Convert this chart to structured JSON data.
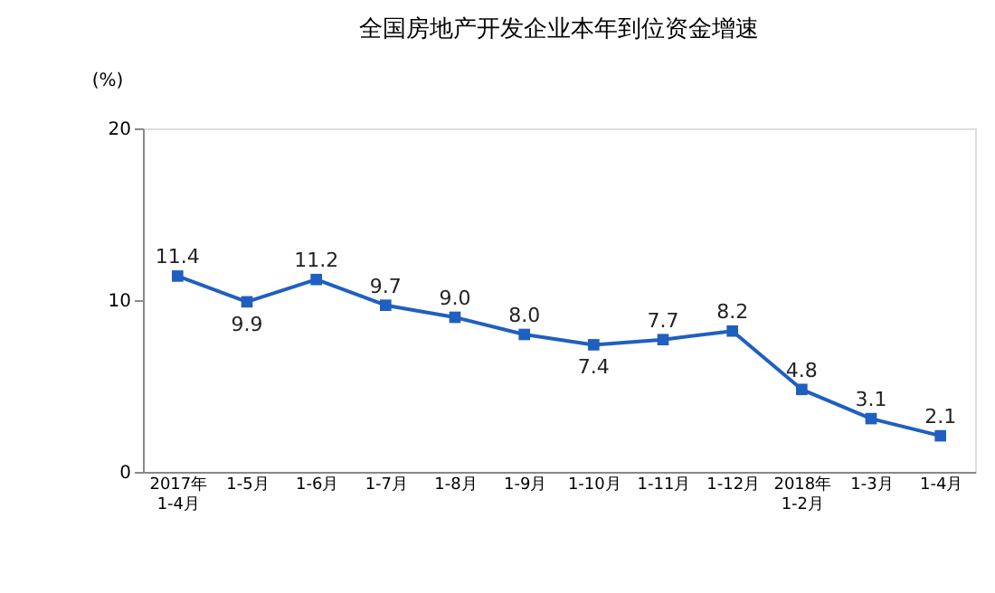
{
  "chart_data": {
    "type": "line",
    "title": "全国房地产开发企业本年到位资金增速",
    "ylabel": "(%)",
    "categories": [
      "2017年\n1-4月",
      "1-5月",
      "1-6月",
      "1-7月",
      "1-8月",
      "1-9月",
      "1-10月",
      "1-11月",
      "1-12月",
      "2018年\n1-2月",
      "1-3月",
      "1-4月"
    ],
    "series": [
      {
        "color": "#1f5fbf",
        "values": [
          11.4,
          9.9,
          11.2,
          9.7,
          9.0,
          8.0,
          7.4,
          7.7,
          8.2,
          4.8,
          3.1,
          2.1
        ],
        "value_labels": [
          "11.4",
          "9.9",
          "11.2",
          "9.7",
          "9.0",
          "8.0",
          "7.4",
          "7.7",
          "8.2",
          "4.8",
          "3.1",
          "2.1"
        ]
      }
    ],
    "ylim": [
      0,
      20
    ],
    "yticks": [
      0,
      10,
      20
    ],
    "grid": false,
    "marker": "square",
    "line_style": "solid"
  }
}
